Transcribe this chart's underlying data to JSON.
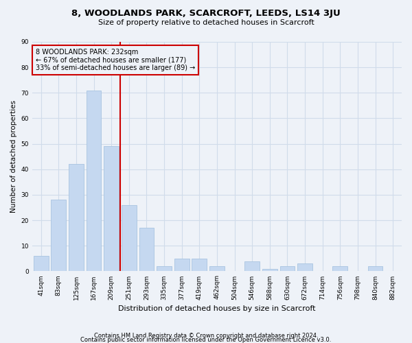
{
  "title": "8, WOODLANDS PARK, SCARCROFT, LEEDS, LS14 3JU",
  "subtitle": "Size of property relative to detached houses in Scarcroft",
  "xlabel": "Distribution of detached houses by size in Scarcroft",
  "ylabel": "Number of detached properties",
  "footer_line1": "Contains HM Land Registry data © Crown copyright and database right 2024.",
  "footer_line2": "Contains public sector information licensed under the Open Government Licence v3.0.",
  "categories": [
    "41sqm",
    "83sqm",
    "125sqm",
    "167sqm",
    "209sqm",
    "251sqm",
    "293sqm",
    "335sqm",
    "377sqm",
    "419sqm",
    "462sqm",
    "504sqm",
    "546sqm",
    "588sqm",
    "630sqm",
    "672sqm",
    "714sqm",
    "756sqm",
    "798sqm",
    "840sqm",
    "882sqm"
  ],
  "values": [
    6,
    28,
    42,
    71,
    49,
    26,
    17,
    2,
    5,
    5,
    2,
    0,
    4,
    1,
    2,
    3,
    0,
    2,
    0,
    2,
    0
  ],
  "bar_color": "#c5d8f0",
  "bar_edge_color": "#a8c4e0",
  "grid_color": "#d0dcea",
  "background_color": "#eef2f8",
  "vline_color": "#cc0000",
  "vline_x_idx": 4.5,
  "annotation_text_line1": "8 WOODLANDS PARK: 232sqm",
  "annotation_text_line2": "← 67% of detached houses are smaller (177)",
  "annotation_text_line3": "33% of semi-detached houses are larger (89) →",
  "annotation_box_edge_color": "#cc0000",
  "ylim": [
    0,
    90
  ],
  "yticks": [
    0,
    10,
    20,
    30,
    40,
    50,
    60,
    70,
    80,
    90
  ]
}
